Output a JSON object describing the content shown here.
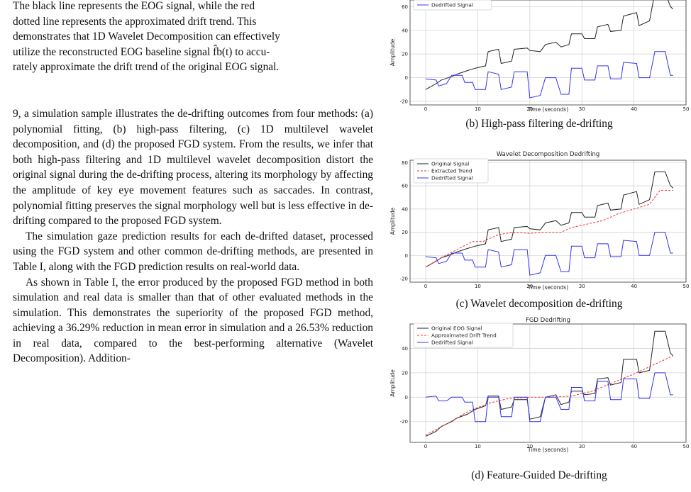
{
  "text": {
    "p1_lines": [
      "The black line represents the EOG signal, while the red",
      "dotted line represents the approximated drift trend. This",
      "demonstrates that 1D Wavelet Decomposition can effectively",
      "utilize the reconstructed EOG baseline signal f̂b(t) to accu-",
      "rately approximate the drift trend of the original EOG signal."
    ],
    "p2": "9, a simulation sample illustrates the de-drifting outcomes from four methods: (a) polynomial fitting, (b) high-pass filtering, (c) 1D multilevel wavelet decomposition, and (d) the proposed FGD system. From the results, we infer that both high-pass filtering and 1D multilevel wavelet decomposition distort the original signal during the de-drifting process, altering its morphology by affecting the amplitude of key eye movement features such as saccades. In contrast, polynomial fitting preserves the signal morphology well but is less effective in de-drifting compared to the proposed FGD system.",
    "p3": "The simulation gaze prediction results for each de-drifted dataset, processed using the FGD system and other common de-drifting methods, are presented in Table I, along with the FGD prediction results on real-world data.",
    "p4": "As shown in Table I, the error produced by the proposed FGD method in both simulation and real data is smaller than that of other evaluated methods in the simulation. This demonstrates the superiority of the proposed FGD method, achieving a 36.29% reduction in mean error in simulation and a 26.53% reduction in real data, compared to the best-performing alternative (Wavelet Decomposition). Addition-"
  },
  "figures": {
    "b": {
      "caption": "(b) High-pass filtering de-drifting",
      "legend": [
        "Dedrifted Signal"
      ]
    },
    "c": {
      "caption": "(c) Wavelet decomposition de-drifting",
      "legend": [
        "Original Signal",
        "Extracted Trend",
        "Dedrifted Signal"
      ]
    },
    "d": {
      "caption": "(d) Feature-Guided De-drifting",
      "legend": [
        "Original EOG Signal",
        "Approximated Drift Trend",
        "Dedrifted Signal"
      ]
    }
  },
  "chart_data": [
    {
      "type": "line",
      "title": "",
      "xlabel": "Time (seconds)",
      "ylabel": "Amplitude",
      "xlim": [
        -3,
        50
      ],
      "ylim": [
        -23,
        68
      ],
      "xticks": [
        0,
        10,
        20,
        30,
        40,
        50
      ],
      "yticks": [
        -20,
        0,
        20,
        40,
        60
      ],
      "grid": true,
      "legend_position": "top-left",
      "series": [
        {
          "name": "",
          "color": "#222222",
          "style": "solid",
          "x": [
            0,
            2,
            3,
            5,
            6,
            8,
            9.5,
            11.5,
            12,
            14,
            14.5,
            16.5,
            17,
            19.5,
            20,
            22,
            23,
            25,
            26,
            27.5,
            28,
            30,
            30.5,
            32.5,
            33,
            35,
            35.5,
            37.5,
            38,
            40.5,
            41,
            43,
            44,
            46,
            47,
            47.5
          ],
          "y": [
            -10,
            -5,
            -2,
            1,
            3,
            6,
            8,
            10,
            22,
            24,
            12,
            14,
            24,
            25,
            23,
            22,
            28,
            30,
            26,
            28,
            37,
            37,
            33,
            33,
            43,
            45,
            39,
            40,
            52,
            55,
            44,
            48,
            72,
            72,
            60,
            58
          ]
        },
        {
          "name": "Dedrifted Signal",
          "color": "#3333ee",
          "style": "solid",
          "x": [
            0,
            2,
            2.5,
            4,
            5,
            7,
            7.5,
            9,
            9.5,
            11.5,
            12,
            14,
            14.5,
            16.5,
            17,
            19.5,
            20,
            22,
            23,
            25,
            26,
            27.5,
            28,
            30,
            30.5,
            32.5,
            33,
            35,
            35.5,
            37.5,
            38,
            40.5,
            41,
            43,
            44,
            46,
            47,
            47.5
          ],
          "y": [
            -1,
            -2,
            -7,
            -5,
            2,
            2,
            -4,
            -4,
            -10,
            -10,
            5,
            3,
            -10,
            -8,
            5,
            5,
            -17,
            -15,
            0,
            0,
            -14,
            -14,
            8,
            8,
            -2,
            -2,
            10,
            10,
            -1,
            -1,
            13,
            12,
            0,
            0,
            22,
            22,
            2,
            2
          ]
        }
      ]
    },
    {
      "type": "line",
      "title": "Wavelet Decomposition Dedrifting",
      "xlabel": "Time (seconds)",
      "ylabel": "Amplitude",
      "xlim": [
        -3,
        50
      ],
      "ylim": [
        -23,
        82
      ],
      "xticks": [
        0,
        10,
        20,
        30,
        40,
        50
      ],
      "yticks": [
        -20,
        0,
        20,
        40,
        60,
        80
      ],
      "grid": true,
      "legend_position": "top-left",
      "series": [
        {
          "name": "Original Signal",
          "color": "#222222",
          "style": "solid",
          "x": [
            0,
            2,
            3,
            5,
            6,
            8,
            9.5,
            11.5,
            12,
            14,
            14.5,
            16.5,
            17,
            19.5,
            20,
            22,
            23,
            25,
            26,
            27.5,
            28,
            30,
            30.5,
            32.5,
            33,
            35,
            35.5,
            37.5,
            38,
            40.5,
            41,
            43,
            44,
            46,
            47,
            47.5
          ],
          "y": [
            -10,
            -5,
            -2,
            1,
            3,
            6,
            8,
            10,
            22,
            24,
            12,
            14,
            24,
            25,
            23,
            22,
            28,
            30,
            26,
            28,
            37,
            37,
            33,
            33,
            43,
            45,
            39,
            40,
            52,
            55,
            44,
            48,
            72,
            72,
            60,
            58
          ]
        },
        {
          "name": "Extracted Trend",
          "color": "#ee3333",
          "style": "dashed",
          "x": [
            0,
            3,
            6,
            9,
            11,
            14,
            17,
            20,
            23,
            26,
            28,
            31,
            34,
            37,
            40,
            43,
            45,
            47.5
          ],
          "y": [
            -10,
            -2,
            5,
            12,
            12,
            18,
            20,
            19,
            20,
            20,
            24,
            27,
            30,
            36,
            40,
            44,
            56,
            56
          ]
        },
        {
          "name": "Dedrifted Signal",
          "color": "#3333ee",
          "style": "solid",
          "x": [
            0,
            2,
            2.5,
            4,
            5,
            7,
            7.5,
            9,
            9.5,
            11.5,
            12,
            14,
            14.5,
            16.5,
            17,
            19.5,
            20,
            22,
            23,
            25,
            26,
            27.5,
            28,
            30,
            30.5,
            32.5,
            33,
            35,
            35.5,
            37.5,
            38,
            40.5,
            41,
            43,
            44,
            46,
            47,
            47.5
          ],
          "y": [
            -1,
            -2,
            -7,
            -5,
            2,
            2,
            -4,
            -4,
            -10,
            -10,
            5,
            3,
            -10,
            -8,
            5,
            5,
            -17,
            -15,
            0,
            0,
            -14,
            -14,
            8,
            8,
            -2,
            -2,
            10,
            10,
            -1,
            -1,
            13,
            12,
            0,
            0,
            20,
            20,
            2,
            2
          ]
        }
      ]
    },
    {
      "type": "line",
      "title": "FGD Dedrifting",
      "xlabel": "Time (seconds)",
      "ylabel": "Amplitude",
      "xlim": [
        -3,
        50
      ],
      "ylim": [
        -37,
        60
      ],
      "xticks": [
        0,
        10,
        20,
        30,
        40,
        50
      ],
      "yticks": [
        -20,
        0,
        20,
        40
      ],
      "grid": true,
      "legend_position": "top-left",
      "series": [
        {
          "name": "Original EOG Signal",
          "color": "#222222",
          "style": "solid",
          "x": [
            0,
            2,
            3,
            5,
            6,
            8,
            9.5,
            11.5,
            12,
            14,
            14.5,
            16.5,
            17,
            19.5,
            20,
            22,
            23,
            25,
            26,
            27.5,
            28,
            30,
            30.5,
            32.5,
            33,
            35,
            35.5,
            37.5,
            38,
            40.5,
            41,
            43,
            44,
            46,
            47,
            47.5
          ],
          "y": [
            -32,
            -28,
            -24,
            -20,
            -17,
            -14,
            -10,
            -7,
            1,
            1,
            -10,
            -8,
            -2,
            -2,
            -18,
            -16,
            0,
            2,
            -6,
            -4,
            5,
            5,
            2,
            3,
            15,
            16,
            10,
            12,
            31,
            31,
            20,
            22,
            54,
            54,
            36,
            34
          ]
        },
        {
          "name": "Approximated Drift Trend",
          "color": "#ee3333",
          "style": "dashed",
          "x": [
            0,
            4,
            8,
            12,
            16,
            20,
            24,
            28,
            32,
            36,
            40,
            44,
            47.5
          ],
          "y": [
            -31,
            -22,
            -12,
            -5,
            -1,
            0,
            0,
            1,
            5,
            12,
            19,
            27,
            34
          ]
        },
        {
          "name": "Dedrifted Signal",
          "color": "#3333ee",
          "style": "solid",
          "x": [
            0,
            2,
            2.5,
            4,
            5,
            7,
            7.5,
            9,
            9.5,
            11.5,
            12,
            14,
            14.5,
            16.5,
            17,
            19.5,
            20,
            22,
            23,
            25,
            26,
            27.5,
            28,
            30,
            30.5,
            32.5,
            33,
            35,
            35.5,
            37.5,
            38,
            40.5,
            41,
            43,
            44,
            46,
            47,
            47.5
          ],
          "y": [
            0,
            1,
            -3,
            -3,
            0,
            0,
            -4,
            -4,
            -20,
            -20,
            0,
            0,
            -16,
            -16,
            0,
            0,
            -20,
            -20,
            0,
            0,
            -10,
            -10,
            8,
            8,
            -3,
            -3,
            13,
            13,
            -2,
            -2,
            15,
            15,
            -1,
            -1,
            20,
            20,
            2,
            2
          ]
        }
      ]
    }
  ]
}
